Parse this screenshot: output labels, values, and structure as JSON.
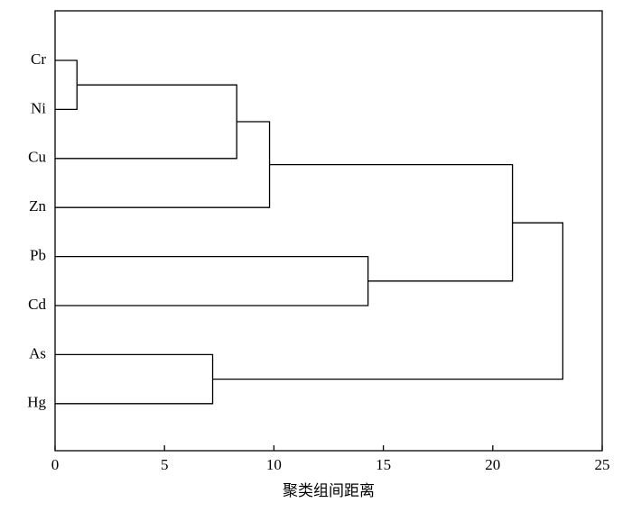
{
  "chart_data": {
    "type": "dendrogram",
    "x_label": "聚类组间距离",
    "categories": [
      "Cr",
      "Ni",
      "Cu",
      "Zn",
      "Pb",
      "Cd",
      "As",
      "Hg"
    ],
    "merges": [
      {
        "children": [
          0,
          1
        ],
        "distance": 1.0
      },
      {
        "children": [
          8,
          2
        ],
        "distance": 8.3
      },
      {
        "children": [
          9,
          3
        ],
        "distance": 9.8
      },
      {
        "children": [
          4,
          5
        ],
        "distance": 14.3
      },
      {
        "children": [
          10,
          11
        ],
        "distance": 20.9
      },
      {
        "children": [
          6,
          7
        ],
        "distance": 7.2
      },
      {
        "children": [
          12,
          13
        ],
        "distance": 23.2
      }
    ],
    "xlim": [
      0,
      25
    ],
    "xticks": [
      0,
      5,
      10,
      15,
      20,
      25
    ]
  }
}
